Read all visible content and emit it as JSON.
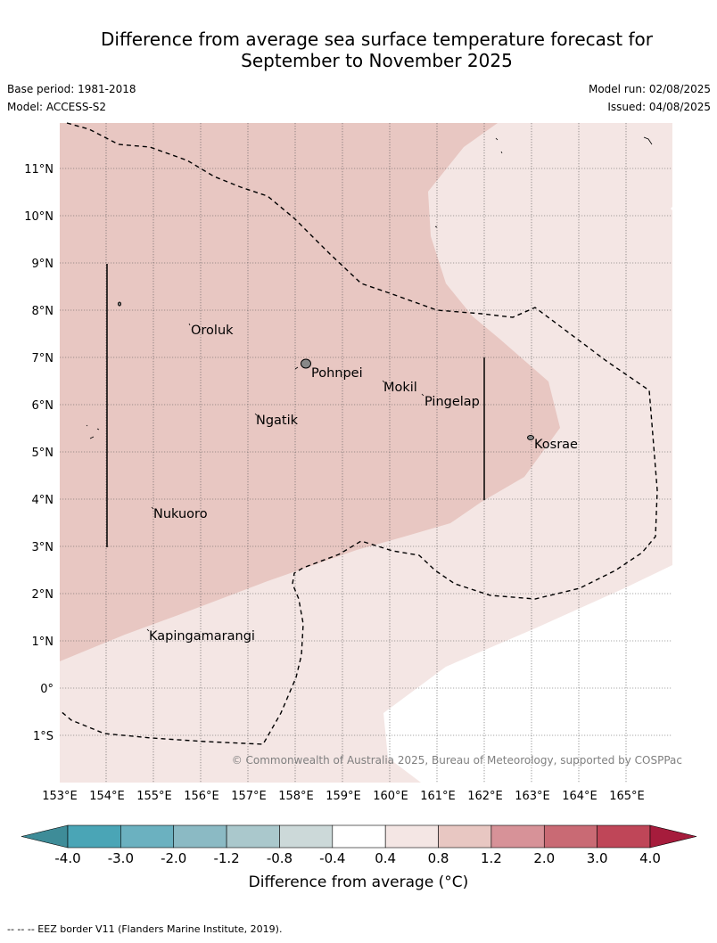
{
  "title": {
    "line1": "Difference from average sea surface temperature forecast for",
    "line2": "September to November 2025"
  },
  "meta": {
    "base_period": "Base period: 1981-2018",
    "model": "Model: ACCESS-S2",
    "model_run": "Model run: 02/08/2025",
    "issued": "Issued: 04/08/2025"
  },
  "map": {
    "lat_labels": [
      "11°N",
      "10°N",
      "9°N",
      "8°N",
      "7°N",
      "6°N",
      "5°N",
      "4°N",
      "3°N",
      "2°N",
      "1°N",
      "0°",
      "1°S"
    ],
    "lon_labels": [
      "153°E",
      "154°E",
      "155°E",
      "156°E",
      "157°E",
      "158°E",
      "159°E",
      "160°E",
      "161°E",
      "162°E",
      "163°E",
      "164°E",
      "165°E"
    ],
    "places": [
      {
        "name": "Oroluk"
      },
      {
        "name": "Pohnpei"
      },
      {
        "name": "Mokil"
      },
      {
        "name": "Pingelap"
      },
      {
        "name": "Ngatik"
      },
      {
        "name": "Kosrae"
      },
      {
        "name": "Nukuoro"
      },
      {
        "name": "Kapingamarangi"
      }
    ],
    "credit": "© Commonwealth of Australia 2025, Bureau of Meteorology, supported by COSPPac",
    "fill_colors": {
      "anom_0_8_to_1_2": "#e8c7c2",
      "anom_0_4_to_0_8": "#f4e6e4",
      "anom_below_0_4": "#ffffff"
    }
  },
  "colorbar": {
    "ticks": [
      "-4.0",
      "-3.0",
      "-2.0",
      "-1.2",
      "-0.8",
      "-0.4",
      "0.4",
      "0.8",
      "1.2",
      "2.0",
      "3.0",
      "4.0"
    ],
    "colors": [
      "#3e8c98",
      "#4aa5b6",
      "#6bb1c0",
      "#8bbac4",
      "#aac8cc",
      "#ccd9d9",
      "#ffffff",
      "#f4e6e4",
      "#e8c7c2",
      "#d79298",
      "#c96a74",
      "#bf4658",
      "#a61c3c"
    ],
    "label": "Difference from average (°C)"
  },
  "footnote": "--  --  -- EEZ border V11 (Flanders Marine Institute, 2019)."
}
